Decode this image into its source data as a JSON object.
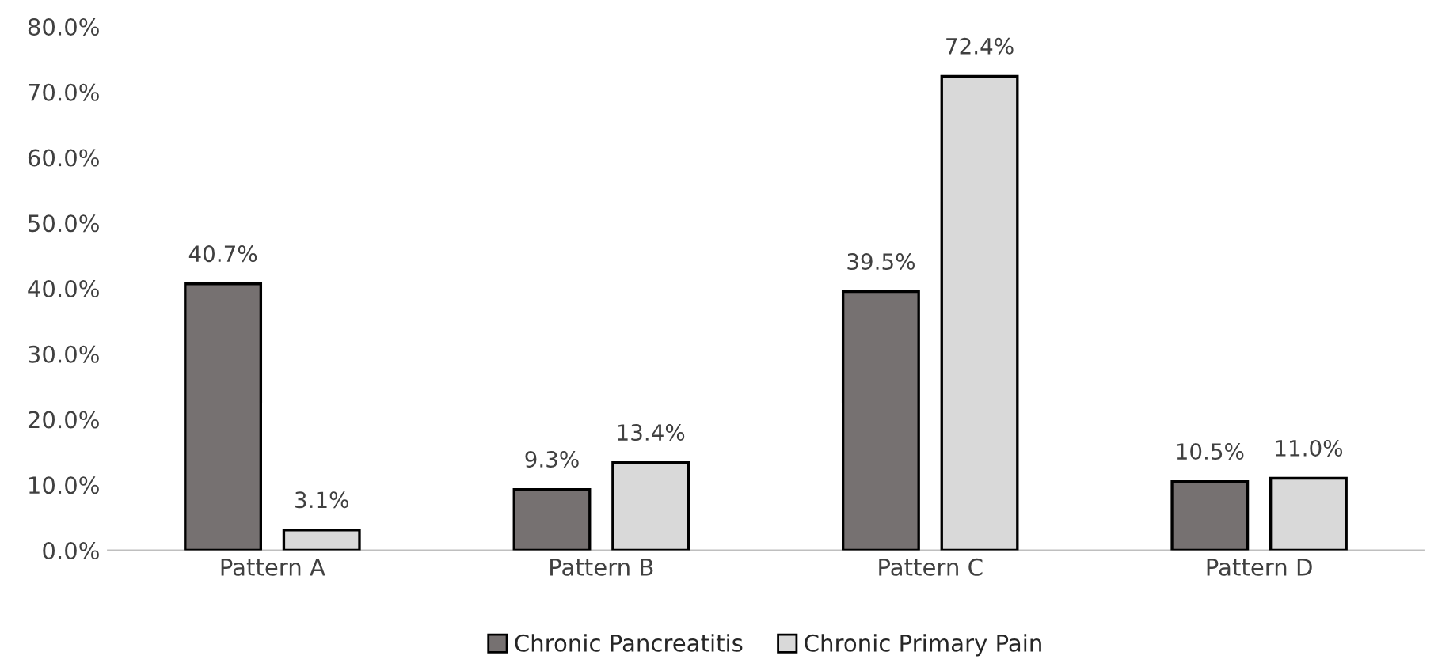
{
  "chart_data": {
    "type": "bar",
    "categories": [
      "Pattern A",
      "Pattern B",
      "Pattern C",
      "Pattern D"
    ],
    "series": [
      {
        "name": "Chronic Pancreatitis",
        "color": "#767171",
        "values": [
          40.7,
          9.3,
          39.5,
          10.5
        ],
        "value_labels": [
          "40.7%",
          "9.3%",
          "39.5%",
          "10.5%"
        ]
      },
      {
        "name": "Chronic Primary Pain",
        "color": "#d9d9d9",
        "values": [
          3.1,
          13.4,
          72.4,
          11.0
        ],
        "value_labels": [
          "3.1%",
          "13.4%",
          "72.4%",
          "11.0%"
        ]
      }
    ],
    "ylim": [
      0,
      80
    ],
    "yticks": [
      {
        "value": 0,
        "label": "0.0%"
      },
      {
        "value": 10,
        "label": "10.0%"
      },
      {
        "value": 20,
        "label": "20.0%"
      },
      {
        "value": 30,
        "label": "30.0%"
      },
      {
        "value": 40,
        "label": "40.0%"
      },
      {
        "value": 50,
        "label": "50.0%"
      },
      {
        "value": 60,
        "label": "60.0%"
      },
      {
        "value": 70,
        "label": "70.0%"
      },
      {
        "value": 80,
        "label": "80.0%"
      }
    ],
    "grid": false,
    "legend": "bottom"
  }
}
